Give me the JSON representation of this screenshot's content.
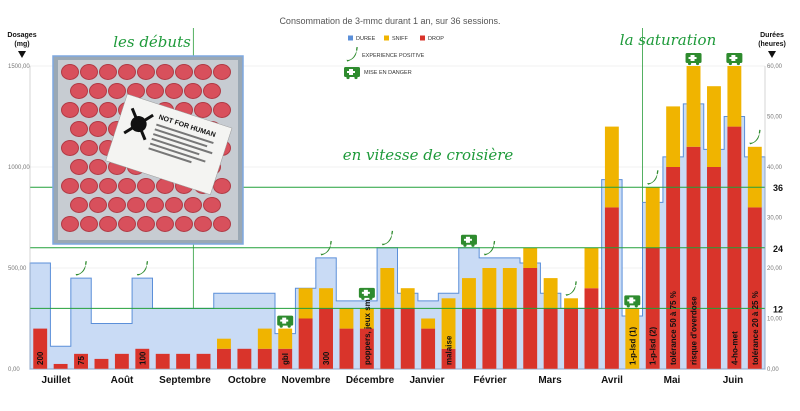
{
  "chart_data": {
    "type": "bar",
    "title": "Consommation de 3-mmc durant 1 an, sur 36 sessions.",
    "left_axis": {
      "label_line1": "Dosages",
      "label_line2": "(mg)",
      "ylim": [
        0,
        1500
      ],
      "ticks": [
        "0,00",
        "500,00",
        "1000,00",
        "1500,00"
      ]
    },
    "right_axis": {
      "label_line1": "Durées",
      "label_line2": "(heures)",
      "ylim": [
        0,
        60
      ],
      "ticks": [
        "0,00",
        "10,00",
        "20,00",
        "30,00",
        "40,00",
        "50,00",
        "60,00"
      ]
    },
    "hours_markers": [
      {
        "label": "12",
        "value": 12
      },
      {
        "label": "24",
        "value": 24
      },
      {
        "label": "36",
        "value": 36
      }
    ],
    "phase_labels": [
      "les débuts",
      "en vitesse de croisière",
      "la saturation"
    ],
    "legend": [
      {
        "name": "DUREE",
        "color": "#5b8fd9"
      },
      {
        "name": "SNIFF",
        "color": "#f0b400"
      },
      {
        "name": "DROP",
        "color": "#d9342b"
      }
    ],
    "legend_icons": [
      {
        "icon": "chili-pepper-icon",
        "text": "EXPERIENCE POSITIVE"
      },
      {
        "icon": "ambulance-icon",
        "text": "MISE EN DANGER"
      }
    ],
    "months": [
      "Juillet",
      "Août",
      "Septembre",
      "Octobre",
      "Novembre",
      "Décembre",
      "Janvier",
      "Février",
      "Mars",
      "Avril",
      "Mai",
      "Juin"
    ],
    "sessions": [
      {
        "drop": 200,
        "sniff": 0,
        "hours": 21,
        "label": "200",
        "pepper": false,
        "ambulance": false
      },
      {
        "drop": 25,
        "sniff": 0,
        "hours": 4.5,
        "label": "",
        "pepper": false,
        "ambulance": false
      },
      {
        "drop": 75,
        "sniff": 0,
        "hours": 18,
        "label": "75",
        "pepper": true,
        "ambulance": false
      },
      {
        "drop": 50,
        "sniff": 0,
        "hours": 9,
        "label": "",
        "pepper": false,
        "ambulance": false
      },
      {
        "drop": 75,
        "sniff": 0,
        "hours": 9,
        "label": "",
        "pepper": false,
        "ambulance": false
      },
      {
        "drop": 100,
        "sniff": 0,
        "hours": 18,
        "label": "100",
        "pepper": true,
        "ambulance": false
      },
      {
        "drop": 75,
        "sniff": 0,
        "hours": 12,
        "label": "",
        "pepper": false,
        "ambulance": false
      },
      {
        "drop": 75,
        "sniff": 0,
        "hours": 12,
        "label": "",
        "pepper": false,
        "ambulance": false
      },
      {
        "drop": 75,
        "sniff": 0,
        "hours": 12,
        "label": "",
        "pepper": false,
        "ambulance": false
      },
      {
        "drop": 100,
        "sniff": 50,
        "hours": 15,
        "label": "",
        "pepper": false,
        "ambulance": false
      },
      {
        "drop": 100,
        "sniff": 0,
        "hours": 15,
        "label": "",
        "pepper": false,
        "ambulance": false
      },
      {
        "drop": 100,
        "sniff": 100,
        "hours": 15,
        "label": "",
        "pepper": false,
        "ambulance": false
      },
      {
        "drop": 100,
        "sniff": 100,
        "hours": 7,
        "label": "gbl",
        "pepper": false,
        "ambulance": true
      },
      {
        "drop": 250,
        "sniff": 150,
        "hours": 16,
        "label": "",
        "pepper": false,
        "ambulance": false
      },
      {
        "drop": 300,
        "sniff": 100,
        "hours": 22,
        "label": "300",
        "pepper": true,
        "ambulance": false
      },
      {
        "drop": 200,
        "sniff": 100,
        "hours": 13.5,
        "label": "",
        "pepper": false,
        "ambulance": false
      },
      {
        "drop": 200,
        "sniff": 100,
        "hours": 13.5,
        "label": "poppers, jeux sm",
        "pepper": false,
        "ambulance": true
      },
      {
        "drop": 300,
        "sniff": 200,
        "hours": 24,
        "label": "",
        "pepper": true,
        "ambulance": false
      },
      {
        "drop": 300,
        "sniff": 100,
        "hours": 15,
        "label": "",
        "pepper": false,
        "ambulance": false
      },
      {
        "drop": 200,
        "sniff": 50,
        "hours": 13.5,
        "label": "",
        "pepper": false,
        "ambulance": false
      },
      {
        "drop": 100,
        "sniff": 250,
        "hours": 15,
        "label": "malaise",
        "pepper": false,
        "ambulance": false
      },
      {
        "drop": 300,
        "sniff": 150,
        "hours": 24,
        "label": "",
        "pepper": false,
        "ambulance": true
      },
      {
        "drop": 300,
        "sniff": 200,
        "hours": 22,
        "label": "",
        "pepper": true,
        "ambulance": false
      },
      {
        "drop": 300,
        "sniff": 200,
        "hours": 22,
        "label": "",
        "pepper": false,
        "ambulance": false
      },
      {
        "drop": 500,
        "sniff": 100,
        "hours": 21,
        "label": "",
        "pepper": false,
        "ambulance": false
      },
      {
        "drop": 300,
        "sniff": 150,
        "hours": 15,
        "label": "",
        "pepper": false,
        "ambulance": false
      },
      {
        "drop": 300,
        "sniff": 50,
        "hours": 12,
        "label": "",
        "pepper": true,
        "ambulance": false
      },
      {
        "drop": 400,
        "sniff": 200,
        "hours": 12,
        "label": "",
        "pepper": false,
        "ambulance": false
      },
      {
        "drop": 800,
        "sniff": 400,
        "hours": 37.5,
        "label": "",
        "pepper": false,
        "ambulance": false
      },
      {
        "drop": 0,
        "sniff": 300,
        "hours": 10.5,
        "label": "1-p-lsd (1)",
        "pepper": false,
        "ambulance": true
      },
      {
        "drop": 600,
        "sniff": 300,
        "hours": 33,
        "label": "1-p-lsd (2)",
        "pepper": true,
        "ambulance": false
      },
      {
        "drop": 1000,
        "sniff": 300,
        "hours": 42,
        "label": "tolérance 50 à 75 %",
        "pepper": false,
        "ambulance": false
      },
      {
        "drop": 1100,
        "sniff": 400,
        "hours": 52.5,
        "label": "risque d'overdose",
        "pepper": false,
        "ambulance": true
      },
      {
        "drop": 1000,
        "sniff": 400,
        "hours": 43.5,
        "label": "",
        "pepper": false,
        "ambulance": false
      },
      {
        "drop": 1200,
        "sniff": 300,
        "hours": 50,
        "label": "4-ho-met",
        "pepper": false,
        "ambulance": true
      },
      {
        "drop": 800,
        "sniff": 300,
        "hours": 42,
        "label": "tolérance 20 à 25 %",
        "pepper": true,
        "ambulance": false
      }
    ],
    "photo": {
      "sticker_text": "NOT FOR HUMAN"
    }
  }
}
